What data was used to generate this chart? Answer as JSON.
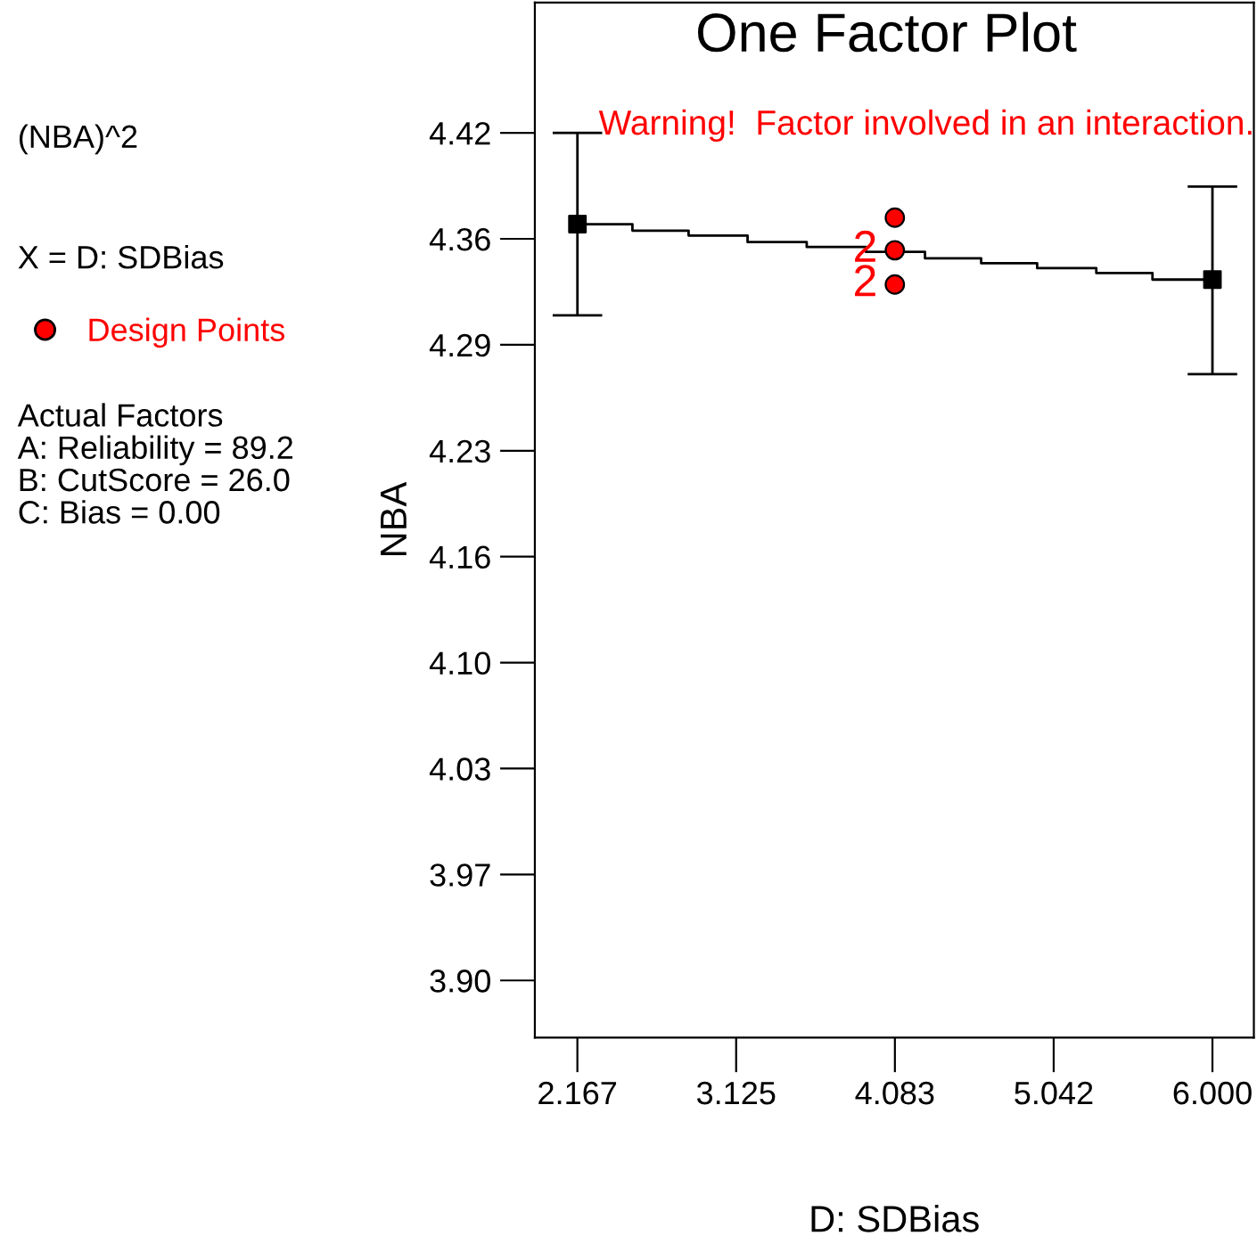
{
  "chart_data": {
    "type": "step",
    "title": "One Factor Plot",
    "xlabel": "D: SDBias",
    "ylabel": "NBA",
    "annotations": [
      "(NBA)^2",
      "X = D: SDBias",
      "Actual Factors\nA: Reliability = 89.2\nB: CutScore = 26.0\nC: Bias = 0.00",
      "Warning!  Factor involved in an interaction.",
      {
        "text": "2",
        "x": 4.083,
        "y": 4.348
      },
      {
        "text": "2",
        "x": 4.083,
        "y": 4.327
      }
    ],
    "series": [
      {
        "color": "#000000",
        "x": [
          2.167,
          2.499,
          2.838,
          3.194,
          3.551,
          3.908,
          4.265,
          4.604,
          4.942,
          5.299,
          5.638,
          6.0
        ],
        "values": [
          4.364,
          4.36,
          4.357,
          4.353,
          4.35,
          4.347,
          4.343,
          4.34,
          4.337,
          4.334,
          4.33,
          4.33
        ]
      },
      {
        "type": "scatter",
        "marker": "square",
        "color": "#000000",
        "x": [
          2.167,
          6.0
        ],
        "values": [
          4.364,
          4.33
        ],
        "errors": [
          [
            4.308,
            4.42
          ],
          [
            4.272,
            4.387
          ]
        ]
      },
      {
        "type": "scatter",
        "marker": "circle",
        "name": "Design Points",
        "color": "#ff0000",
        "x": [
          4.083,
          4.083,
          4.083
        ],
        "values": [
          4.368,
          4.348,
          4.327
        ]
      }
    ],
    "xlim": [
      1.91,
      6.25
    ],
    "ylim": [
      3.865,
      4.5
    ],
    "xticks": [
      {
        "value": 2.1667,
        "label": "2.167"
      },
      3.125,
      {
        "value": 4.0833,
        "label": "4.083"
      },
      {
        "value": 5.0417,
        "label": "5.042"
      },
      {
        "value": 6.0,
        "label": "6.000"
      }
    ],
    "yticks": [
      {
        "value": 3.9,
        "label": "3.90"
      },
      {
        "value": 3.965,
        "label": "3.97"
      },
      4.03,
      {
        "value": 4.095,
        "label": "4.10"
      },
      4.16,
      {
        "value": 4.225,
        "label": "4.23"
      },
      4.29,
      {
        "value": 4.355,
        "label": "4.36"
      },
      4.42
    ],
    "grid": false,
    "legend": "left"
  }
}
